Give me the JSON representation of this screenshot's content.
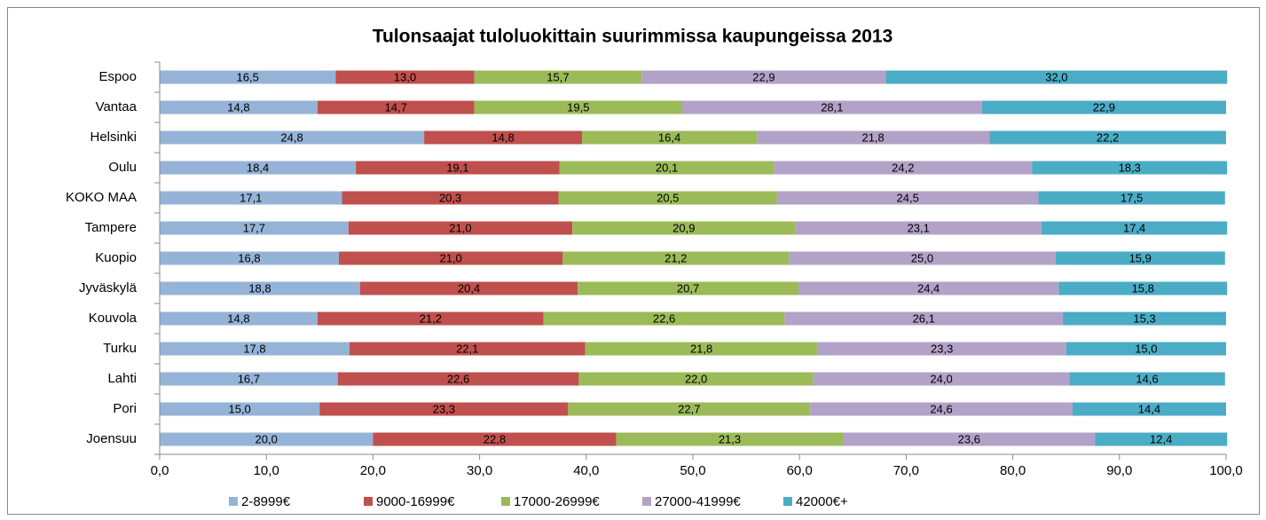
{
  "chart_data": {
    "type": "stacked_bar_horizontal",
    "title": "Tulonsaajat tuloluokittain suurimmissa kaupungeissa 2013",
    "categories": [
      "Espoo",
      "Vantaa",
      "Helsinki",
      "Oulu",
      "KOKO MAA",
      "Tampere",
      "Kuopio",
      "Jyväskylä",
      "Kouvola",
      "Turku",
      "Lahti",
      "Pori",
      "Joensuu"
    ],
    "series": [
      {
        "name": "2-8999€",
        "color": "#95b3d7",
        "values": [
          16.5,
          14.8,
          24.8,
          18.4,
          17.1,
          17.7,
          16.8,
          18.8,
          14.8,
          17.8,
          16.7,
          15.0,
          20.0
        ],
        "value_labels": [
          "16,5",
          "14,8",
          "24,8",
          "18,4",
          "17,1",
          "17,7",
          "16,8",
          "18,8",
          "14,8",
          "17,8",
          "16,7",
          "15,0",
          "20,0"
        ]
      },
      {
        "name": "9000-16999€",
        "color": "#c0504d",
        "values": [
          13.0,
          14.7,
          14.8,
          19.1,
          20.3,
          21.0,
          21.0,
          20.4,
          21.2,
          22.1,
          22.6,
          23.3,
          22.8
        ],
        "value_labels": [
          "13,0",
          "14,7",
          "14,8",
          "19,1",
          "20,3",
          "21,0",
          "21,0",
          "20,4",
          "21,2",
          "22,1",
          "22,6",
          "23,3",
          "22,8"
        ]
      },
      {
        "name": "17000-26999€",
        "color": "#9bbb59",
        "values": [
          15.7,
          19.5,
          16.4,
          20.1,
          20.5,
          20.9,
          21.2,
          20.7,
          22.6,
          21.8,
          22.0,
          22.7,
          21.3
        ],
        "value_labels": [
          "15,7",
          "19,5",
          "16,4",
          "20,1",
          "20,5",
          "20,9",
          "21,2",
          "20,7",
          "22,6",
          "21,8",
          "22,0",
          "22,7",
          "21,3"
        ]
      },
      {
        "name": "27000-41999€",
        "color": "#b3a2c7",
        "values": [
          22.9,
          28.1,
          21.8,
          24.2,
          24.5,
          23.1,
          25.0,
          24.4,
          26.1,
          23.3,
          24.0,
          24.6,
          23.6
        ],
        "value_labels": [
          "22,9",
          "28,1",
          "21,8",
          "24,2",
          "24,5",
          "23,1",
          "25,0",
          "24,4",
          "26,1",
          "23,3",
          "24,0",
          "24,6",
          "23,6"
        ]
      },
      {
        "name": "42000€+",
        "color": "#4bacc6",
        "values": [
          32.0,
          22.9,
          22.2,
          18.3,
          17.5,
          17.4,
          15.9,
          15.8,
          15.3,
          15.0,
          14.6,
          14.4,
          12.4
        ],
        "value_labels": [
          "32,0",
          "22,9",
          "22,2",
          "18,3",
          "17,5",
          "17,4",
          "15,9",
          "15,8",
          "15,3",
          "15,0",
          "14,6",
          "14,4",
          "12,4"
        ]
      }
    ],
    "xlim": [
      0,
      100
    ],
    "xticks": [
      {
        "value": 0,
        "label": "0,0"
      },
      {
        "value": 10,
        "label": "10,0"
      },
      {
        "value": 20,
        "label": "20,0"
      },
      {
        "value": 30,
        "label": "30,0"
      },
      {
        "value": 40,
        "label": "40,0"
      },
      {
        "value": 50,
        "label": "50,0"
      },
      {
        "value": 60,
        "label": "60,0"
      },
      {
        "value": 70,
        "label": "70,0"
      },
      {
        "value": 80,
        "label": "80,0"
      },
      {
        "value": 90,
        "label": "90,0"
      },
      {
        "value": 100,
        "label": "100,0"
      }
    ],
    "legend": "bottom",
    "grid": false
  }
}
